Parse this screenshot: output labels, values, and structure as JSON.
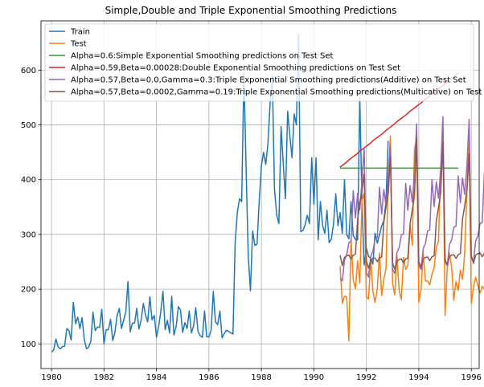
{
  "chart_data": {
    "type": "line",
    "title": "Simple,Double and Triple Exponential Smoothing Predictions",
    "xlabel": "",
    "ylabel": "",
    "xlim": [
      1979.6,
      1996.3
    ],
    "ylim": [
      55,
      690
    ],
    "grid": true,
    "legend_position": "top-left",
    "x_ticks": [
      1980,
      1982,
      1984,
      1986,
      1988,
      1990,
      1992,
      1994,
      1996
    ],
    "x_tick_labels": [
      "1980",
      "1982",
      "1984",
      "1986",
      "1988",
      "1990",
      "1992",
      "1994",
      "1996"
    ],
    "y_ticks": [
      100,
      200,
      300,
      400,
      500,
      600
    ],
    "y_tick_labels": [
      "100",
      "200",
      "300",
      "400",
      "500",
      "600"
    ],
    "series": [
      {
        "name": "Train",
        "color": "#1f77b4",
        "start": 1980.0,
        "step": 0.08333,
        "values": [
          85,
          89,
          109,
          95,
          91,
          95,
          96,
          128,
          124,
          107,
          176,
          137,
          149,
          128,
          148,
          108,
          91,
          94,
          105,
          158,
          124,
          131,
          130,
          163,
          100,
          126,
          126,
          145,
          106,
          121,
          151,
          165,
          128,
          143,
          159,
          214,
          122,
          138,
          138,
          165,
          127,
          144,
          174,
          153,
          140,
          186,
          144,
          152,
          112,
          132,
          159,
          196,
          126,
          143,
          120,
          187,
          116,
          132,
          168,
          162,
          121,
          139,
          128,
          160,
          120,
          133,
          166,
          123,
          115,
          112,
          160,
          113,
          113,
          125,
          196,
          140,
          135,
          160,
          111,
          119,
          125,
          123,
          120,
          118,
          286,
          340,
          365,
          360,
          595,
          420,
          260,
          197,
          306,
          280,
          282,
          360,
          425,
          450,
          428,
          467,
          540,
          590,
          383,
          335,
          320,
          497,
          430,
          365,
          525,
          480,
          440,
          520,
          500,
          665,
          305,
          307,
          318,
          335,
          320,
          440,
          355,
          440,
          290,
          360,
          316,
          302,
          344,
          285,
          291,
          320,
          374,
          316,
          340,
          302,
          400,
          300,
          292,
          360,
          298,
          291,
          290,
          550,
          360,
          244,
          275,
          260,
          256,
          246,
          302,
          284,
          299,
          315,
          325,
          362,
          471
        ]
      },
      {
        "name": "Test",
        "color": "#ff7f0e",
        "start": 1991.0,
        "step": 0.08333,
        "values": [
          242,
          174,
          187,
          186,
          105,
          290,
          216,
          201,
          252,
          211,
          362,
          375,
          186,
          182,
          258,
          196,
          176,
          201,
          266,
          188,
          218,
          238,
          405,
          480,
          211,
          189,
          262,
          198,
          181,
          258,
          236,
          243,
          316,
          280,
          455,
          478,
          176,
          200,
          266,
          215,
          215,
          208,
          227,
          239,
          276,
          288,
          415,
          488,
          152,
          239,
          266,
          241,
          180,
          214,
          198,
          235,
          218,
          266,
          383,
          475,
          174,
          203,
          222,
          207,
          193,
          205,
          199,
          298,
          268,
          272,
          388,
          483,
          160,
          231,
          185,
          194,
          190,
          274
        ]
      },
      {
        "name": "Alpha=0.6:Simple Exponential Smoothing predictions on Test Set",
        "color": "#2ca02c",
        "start": 1991.0,
        "step": 0.08333,
        "values": [
          421,
          421,
          421,
          421,
          421,
          421,
          421,
          421,
          421,
          421,
          421,
          421,
          421,
          421,
          421,
          421,
          421,
          421,
          421,
          421,
          421,
          421,
          421,
          421,
          421,
          421,
          421,
          421,
          421,
          421,
          421,
          421,
          421,
          421,
          421,
          421,
          421,
          421,
          421,
          421,
          421,
          421,
          421,
          421,
          421,
          421,
          421,
          421,
          421,
          421,
          421,
          421,
          421,
          421,
          421
        ]
      },
      {
        "name": "Alpha=0.59,Beta=0.00028:Double Exponential Smoothing predictions on Test Set",
        "color": "#d62728",
        "start": 1991.0,
        "step": 0.08333,
        "values": [
          423,
          426,
          429,
          432,
          436,
          439,
          442,
          445,
          448,
          452,
          455,
          458,
          461,
          464,
          467,
          471,
          474,
          477,
          480,
          483,
          486,
          490,
          493,
          496,
          499,
          502,
          506,
          509,
          512,
          515,
          518,
          521,
          525,
          528,
          531,
          534,
          537,
          540,
          544,
          547,
          550,
          553,
          556,
          560,
          563,
          566,
          569,
          572,
          575,
          579,
          582,
          585,
          588,
          591,
          595
        ]
      },
      {
        "name": "Alpha=0.57,Beta=0.0,Gamma=0.3:Triple Exponential Smoothing predictions(Additive) on Test Set",
        "color": "#9467bd",
        "start": 1991.0,
        "step": 0.08333,
        "values": [
          220,
          215,
          253,
          262,
          285,
          287,
          380,
          330,
          375,
          345,
          398,
          458,
          230,
          222,
          260,
          269,
          292,
          294,
          386,
          337,
          382,
          352,
          405,
          465,
          236,
          229,
          267,
          276,
          299,
          301,
          393,
          344,
          389,
          359,
          412,
          502,
          243,
          236,
          274,
          283,
          306,
          308,
          400,
          351,
          396,
          366,
          419,
          515,
          250,
          243,
          281,
          290,
          313,
          315,
          407,
          358,
          403,
          373,
          426,
          510,
          257,
          250,
          288,
          297,
          320,
          322,
          414,
          365,
          410,
          380,
          443,
          490,
          263,
          256,
          294,
          303,
          326,
          328,
          368,
          366
        ]
      },
      {
        "name": "Alpha=0.57,Beta=0.0002,Gamma=0.19:Triple Exponential Smoothing predictions(Multicative) on Test Set",
        "color": "#8c564b",
        "start": 1991.0,
        "step": 0.08333,
        "values": [
          262,
          243,
          258,
          261,
          262,
          255,
          262,
          264,
          327,
          355,
          380,
          410,
          252,
          238,
          253,
          256,
          257,
          250,
          257,
          259,
          322,
          350,
          375,
          442,
          248,
          236,
          251,
          254,
          255,
          248,
          255,
          257,
          320,
          345,
          370,
          476,
          250,
          240,
          255,
          258,
          259,
          252,
          259,
          261,
          324,
          349,
          376,
          468,
          254,
          244,
          259,
          262,
          263,
          256,
          263,
          265,
          328,
          353,
          380,
          447,
          262,
          247,
          262,
          265,
          266,
          259,
          266,
          268,
          331,
          356,
          384,
          490,
          263,
          258,
          273,
          276,
          290,
          289,
          285,
          279
        ]
      }
    ]
  }
}
